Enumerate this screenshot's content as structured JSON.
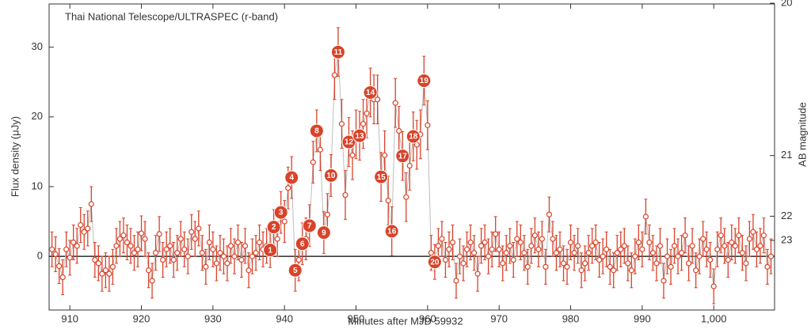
{
  "chart_data": {
    "type": "errorbar",
    "title": "Thai National Telescope/ULTRASPEC (r-band)",
    "xlabel": "Minutes after MJD 59932",
    "ylabel": "Flux density (μJy)",
    "y2label": "AB magnitude",
    "color": "#d8432a",
    "line_color": "#bdbdbd",
    "xlim": [
      907.1,
      1008.5
    ],
    "ylim": [
      -7.7,
      36.2
    ],
    "xticks": [
      910,
      920,
      930,
      940,
      950,
      960,
      970,
      980,
      990,
      {
        "value": 1000,
        "label": "1,000"
      }
    ],
    "yticks": [
      0,
      10,
      20,
      30
    ],
    "y2_scale": "ab_magnitude",
    "y2ticks": [
      20,
      21,
      22,
      23
    ],
    "zero_line": true,
    "x": [
      907.5,
      908,
      908.5,
      909,
      909.5,
      910,
      910.5,
      911,
      911.5,
      912,
      912.5,
      913,
      913.5,
      914,
      914.5,
      915,
      915.5,
      916,
      916.5,
      917,
      917.5,
      918,
      918.5,
      919,
      919.5,
      920,
      920.5,
      921,
      921.5,
      922,
      922.5,
      923,
      923.5,
      924,
      924.5,
      925,
      925.5,
      926,
      926.5,
      927,
      927.5,
      928,
      928.5,
      929,
      929.5,
      930,
      930.5,
      931,
      931.5,
      932,
      932.5,
      933,
      933.5,
      934,
      934.5,
      935,
      935.5,
      936,
      936.5,
      937,
      937.5,
      938,
      938.5,
      939,
      939.5,
      940,
      940.5,
      941,
      941.5,
      942,
      942.5,
      943,
      943.5,
      944,
      944.5,
      945,
      945.5,
      946,
      946.5,
      947,
      947.5,
      948,
      948.5,
      949,
      949.5,
      950,
      950.5,
      951,
      951.5,
      952,
      952.5,
      953,
      953.5,
      954,
      954.5,
      955,
      955.5,
      956,
      956.5,
      957,
      957.5,
      958,
      958.5,
      959,
      959.5,
      960,
      960.5,
      961,
      961.5,
      962,
      962.5,
      963,
      963.5,
      964,
      964.5,
      965,
      965.5,
      966,
      966.5,
      967,
      967.5,
      968,
      968.5,
      969,
      969.5,
      970,
      970.5,
      971,
      971.5,
      972,
      972.5,
      973,
      973.5,
      974,
      974.5,
      975,
      975.5,
      976,
      976.5,
      977,
      977.5,
      978,
      978.5,
      979,
      979.5,
      980,
      980.5,
      981,
      981.5,
      982,
      982.5,
      983,
      983.5,
      984,
      984.5,
      985,
      985.5,
      986,
      986.5,
      987,
      987.5,
      988,
      988.5,
      989,
      989.5,
      990,
      990.5,
      991,
      991.5,
      992,
      992.5,
      993,
      993.5,
      994,
      994.5,
      995,
      995.5,
      996,
      996.5,
      997,
      997.5,
      998,
      998.5,
      999,
      999.5,
      1000,
      1000.5,
      1001,
      1001.5,
      1002,
      1002.5,
      1003,
      1003.5,
      1004,
      1004.5,
      1005,
      1005.5,
      1006,
      1006.5,
      1007,
      1007.5,
      1008
    ],
    "values": [
      1.0,
      0.3,
      -1.4,
      -3.0,
      1.0,
      -0.2,
      2.0,
      1.5,
      4.5,
      3.5,
      4.0,
      7.5,
      -0.5,
      -1.0,
      -2.5,
      -2.0,
      -2.5,
      -1.5,
      1.5,
      2.5,
      3.0,
      2.0,
      1.5,
      0.5,
      1.0,
      3.3,
      2.5,
      -2.0,
      -3.5,
      0.5,
      3.2,
      -0.5,
      1.0,
      1.5,
      -0.5,
      0.5,
      2.5,
      1.0,
      0.0,
      3.5,
      2.5,
      4.0,
      0.5,
      -1.5,
      2.0,
      1.0,
      -1.0,
      0.5,
      0.0,
      -1.0,
      1.5,
      0.0,
      2.0,
      -0.5,
      1.5,
      -2.0,
      0.0,
      0.5,
      2.0,
      1.0,
      1.5,
      0.9,
      4.2,
      2.5,
      6.3,
      5.0,
      9.8,
      11.3,
      -2.0,
      -0.5,
      1.8,
      2.5,
      4.4,
      13.5,
      18.0,
      15.3,
      3.4,
      6.0,
      11.6,
      26.0,
      29.3,
      19.0,
      8.8,
      16.4,
      14.5,
      17.5,
      17.3,
      19.0,
      20.5,
      23.5,
      22.5,
      22.5,
      11.4,
      14.5,
      8.0,
      3.6,
      22.0,
      18.0,
      14.4,
      8.5,
      13.0,
      17.2,
      16.0,
      17.5,
      25.2,
      18.8,
      0.5,
      -0.8,
      1.5,
      2.5,
      -0.5,
      1.0,
      2.0,
      -3.5,
      0.0,
      -1.0,
      1.0,
      2.0,
      0.5,
      -2.5,
      1.5,
      2.0,
      0.0,
      1.0,
      3.2,
      1.0,
      -1.0,
      0.5,
      1.5,
      -0.5,
      2.5,
      2.0,
      0.5,
      -1.5,
      1.5,
      3.0,
      1.0,
      2.5,
      -1.5,
      6.0,
      2.5,
      0.5,
      1.0,
      -1.0,
      -1.5,
      2.0,
      0.5,
      1.5,
      -2.0,
      -1.0,
      0.5,
      1.5,
      2.0,
      -0.5,
      0.0,
      1.0,
      -1.5,
      -2.0,
      0.5,
      1.0,
      1.5,
      -1.0,
      -2.0,
      0.0,
      2.0,
      1.0,
      5.7,
      2.0,
      0.5,
      -1.0,
      1.5,
      -3.5,
      0.0,
      -1.5,
      1.5,
      0.0,
      0.5,
      3.0,
      -1.0,
      1.5,
      -2.0,
      0.0,
      2.5,
      1.0,
      -0.5,
      -4.3,
      1.0,
      3.0,
      1.5,
      -0.5,
      2.0,
      1.5,
      3.0,
      0.5,
      -1.0,
      2.5,
      3.5,
      1.0,
      1.5,
      3.0,
      -1.5,
      0.0
    ],
    "errors": [
      2.5,
      2.5,
      2.5,
      2.5,
      2.5,
      2.5,
      2.5,
      2.5,
      2.5,
      2.5,
      2.5,
      2.5,
      2.5,
      2.5,
      2.5,
      2.5,
      2.5,
      2.5,
      2.5,
      2.5,
      2.5,
      2.5,
      2.5,
      2.5,
      2.5,
      2.5,
      2.5,
      2.5,
      2.5,
      2.5,
      2.5,
      2.5,
      2.5,
      2.5,
      2.5,
      2.5,
      2.5,
      2.5,
      2.5,
      2.5,
      2.5,
      2.5,
      2.5,
      2.5,
      2.5,
      2.5,
      2.5,
      2.5,
      2.5,
      2.5,
      2.5,
      2.5,
      2.5,
      2.5,
      2.5,
      2.5,
      2.5,
      2.5,
      2.5,
      2.5,
      2.5,
      2.5,
      2.5,
      2.5,
      3,
      3,
      3,
      3,
      3,
      3,
      3,
      3,
      3,
      3,
      3,
      3,
      3,
      3,
      3,
      3.5,
      3.5,
      3.5,
      3.5,
      3.5,
      3.5,
      3.5,
      3.5,
      3.5,
      3.5,
      3.5,
      3.5,
      3.5,
      3.5,
      3.5,
      3.5,
      3.5,
      3.5,
      3.5,
      3.5,
      3.5,
      3.5,
      3.5,
      3.5,
      3.5,
      3.5,
      3.5,
      2.5,
      2.5,
      2.5,
      2.5,
      2.5,
      2.5,
      2.5,
      2.5,
      2.5,
      2.5,
      2.5,
      2.5,
      2.5,
      2.5,
      2.5,
      2.5,
      2.5,
      2.5,
      2.5,
      2.5,
      2.5,
      2.5,
      2.5,
      2.5,
      2.5,
      2.5,
      2.5,
      2.5,
      2.5,
      2.5,
      2.5,
      2.5,
      2.5,
      2.5,
      2.5,
      2.5,
      2.5,
      2.5,
      2.5,
      2.5,
      2.5,
      2.5,
      2.5,
      2.5,
      2.5,
      2.5,
      2.5,
      2.5,
      2.5,
      2.5,
      2.5,
      2.5,
      2.5,
      2.5,
      2.5,
      2.5,
      2.5,
      2.5,
      2.5,
      2.5,
      2.5,
      2.5,
      2.5,
      2.5,
      2.5,
      2.5,
      2.5,
      2.5,
      2.5,
      2.5,
      2.5,
      2.5,
      2.5,
      2.5,
      2.5,
      2.5,
      2.5,
      2.5,
      2.5,
      2.5,
      2.5,
      2.5,
      2.5,
      2.5,
      2.5,
      2.5,
      2.5,
      2.5,
      2.5,
      2.5,
      2.5,
      2.5,
      2.5,
      2.5,
      2.5,
      2.5
    ],
    "annotations": [
      {
        "label": "1",
        "x": 938,
        "y": 0.9
      },
      {
        "label": "2",
        "x": 938.5,
        "y": 4.2
      },
      {
        "label": "3",
        "x": 939.5,
        "y": 6.3
      },
      {
        "label": "4",
        "x": 941,
        "y": 11.3
      },
      {
        "label": "5",
        "x": 941.5,
        "y": -2.0
      },
      {
        "label": "6",
        "x": 942.5,
        "y": 1.8
      },
      {
        "label": "7",
        "x": 943.5,
        "y": 4.4
      },
      {
        "label": "8",
        "x": 944.5,
        "y": 18.0
      },
      {
        "label": "9",
        "x": 945.5,
        "y": 3.4
      },
      {
        "label": "10",
        "x": 946.5,
        "y": 11.6
      },
      {
        "label": "11",
        "x": 947.5,
        "y": 29.3
      },
      {
        "label": "12",
        "x": 949,
        "y": 16.4
      },
      {
        "label": "13",
        "x": 950.5,
        "y": 17.3
      },
      {
        "label": "14",
        "x": 952,
        "y": 23.5
      },
      {
        "label": "15",
        "x": 953.5,
        "y": 11.4
      },
      {
        "label": "16",
        "x": 955,
        "y": 3.6
      },
      {
        "label": "17",
        "x": 956.5,
        "y": 14.4
      },
      {
        "label": "18",
        "x": 958,
        "y": 17.2
      },
      {
        "label": "19",
        "x": 959.5,
        "y": 25.2
      },
      {
        "label": "20",
        "x": 961,
        "y": -0.8
      }
    ]
  }
}
